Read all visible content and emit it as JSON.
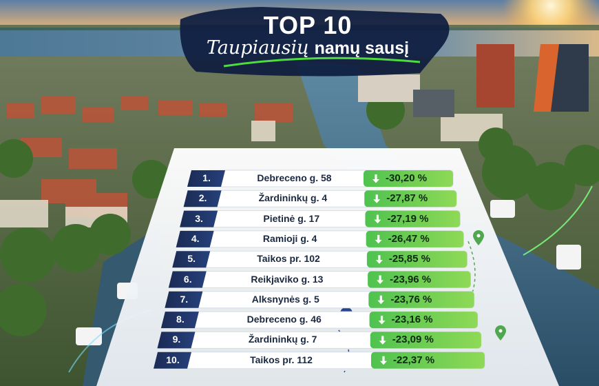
{
  "title": {
    "line1": "TOP 10",
    "line2_script": "Taupiausių",
    "line2_rest": "namų sausį"
  },
  "colors": {
    "badge": "#1b2b55",
    "positive_green": "#3bb54a",
    "panel": "#f4f6f8"
  },
  "icons": [
    "location-pin-icon",
    "down-arrow-icon"
  ],
  "rows": [
    {
      "rank": "1.",
      "address": "Debreceno g. 58",
      "change": "-30,20 %"
    },
    {
      "rank": "2.",
      "address": "Žardininkų g. 4",
      "change": "-27,87 %"
    },
    {
      "rank": "3.",
      "address": "Pietinė g. 17",
      "change": "-27,19 %"
    },
    {
      "rank": "4.",
      "address": "Ramioji g. 4",
      "change": "-26,47 %"
    },
    {
      "rank": "5.",
      "address": "Taikos pr. 102",
      "change": "-25,85 %"
    },
    {
      "rank": "6.",
      "address": "Reikjaviko g. 13",
      "change": "-23,96 %"
    },
    {
      "rank": "7.",
      "address": "Alksnynės g. 5",
      "change": "-23,76 %"
    },
    {
      "rank": "8.",
      "address": "Debreceno g. 46",
      "change": "-23,16 %"
    },
    {
      "rank": "9.",
      "address": "Žardininkų g. 7",
      "change": "-23,09 %"
    },
    {
      "rank": "10.",
      "address": "Taikos pr. 112",
      "change": "-22,37 %"
    }
  ]
}
